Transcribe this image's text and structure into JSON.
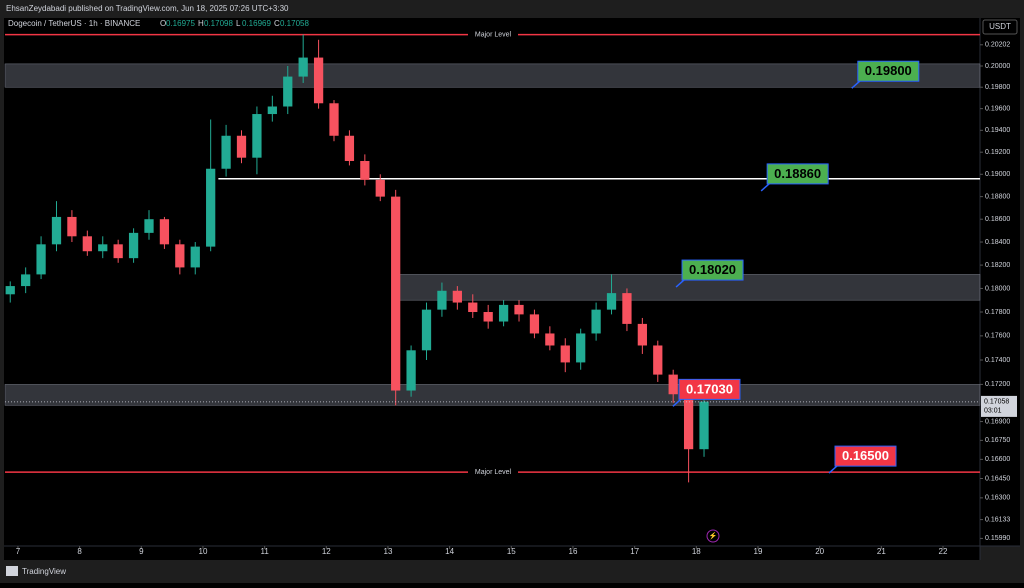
{
  "header": {
    "publisher": "EhsanZeydabadi published on TradingView.com, Jun 18, 2025 07:26 UTC+3:30",
    "symbol": "Dogecoin / TetherUS · 1h · BINANCE",
    "ohlc": [
      {
        "key": "O",
        "value": "0.16975"
      },
      {
        "key": "H",
        "value": "0.17098"
      },
      {
        "key": "L",
        "value": "0.16969"
      },
      {
        "key": "C",
        "value": "0.17058"
      }
    ],
    "currency": "USDT"
  },
  "footer": {
    "brand": "TradingView"
  },
  "chart_data": {
    "type": "candlestick",
    "log_scale": true,
    "up_color": "#22ab94",
    "down_color": "#f7525f",
    "x": [
      6.875,
      7.125,
      7.375,
      7.625,
      7.875,
      8.125,
      8.375,
      8.625,
      8.875,
      9.125,
      9.375,
      9.625,
      9.875,
      10.125,
      10.375,
      10.625,
      10.875,
      11.125,
      11.375,
      11.625,
      11.875,
      12.125,
      12.375,
      12.625,
      12.875,
      13.125,
      13.375,
      13.625,
      13.875,
      14.125,
      14.375,
      14.625,
      14.875,
      15.125,
      15.375,
      15.625,
      15.875,
      16.125,
      16.375,
      16.625,
      16.875,
      17.125,
      17.375,
      17.625,
      17.875,
      18.125
    ],
    "open": [
      0.1795,
      0.1802,
      0.1812,
      0.1838,
      0.1862,
      0.1845,
      0.1832,
      0.1838,
      0.1826,
      0.1848,
      0.186,
      0.1838,
      0.1818,
      0.1836,
      0.1905,
      0.1935,
      0.1915,
      0.1955,
      0.1962,
      0.199,
      0.2008,
      0.1965,
      0.1935,
      0.1912,
      0.1895,
      0.188,
      0.1715,
      0.1748,
      0.1782,
      0.1798,
      0.1788,
      0.178,
      0.1772,
      0.1786,
      0.1778,
      0.1762,
      0.1752,
      0.1738,
      0.1762,
      0.1782,
      0.1796,
      0.177,
      0.1752,
      0.1728,
      0.1712,
      0.1668
    ],
    "high": [
      0.1806,
      0.1818,
      0.1845,
      0.1876,
      0.1868,
      0.185,
      0.1845,
      0.1842,
      0.1852,
      0.1868,
      0.1862,
      0.1842,
      0.184,
      0.195,
      0.1945,
      0.194,
      0.1962,
      0.1972,
      0.2,
      0.203,
      0.2025,
      0.1968,
      0.194,
      0.1918,
      0.19,
      0.1886,
      0.1752,
      0.1788,
      0.1805,
      0.1802,
      0.1795,
      0.1786,
      0.179,
      0.179,
      0.1782,
      0.1768,
      0.1758,
      0.1766,
      0.1788,
      0.1812,
      0.18,
      0.1775,
      0.1756,
      0.1732,
      0.1716,
      0.1718
    ],
    "low": [
      0.1788,
      0.1796,
      0.1808,
      0.1832,
      0.184,
      0.1828,
      0.1826,
      0.1822,
      0.1822,
      0.1842,
      0.1834,
      0.1812,
      0.1812,
      0.1832,
      0.1898,
      0.191,
      0.19,
      0.1948,
      0.1955,
      0.1984,
      0.196,
      0.193,
      0.1908,
      0.189,
      0.1876,
      0.1703,
      0.171,
      0.174,
      0.1776,
      0.1782,
      0.1775,
      0.1766,
      0.1768,
      0.1772,
      0.1758,
      0.1748,
      0.173,
      0.1732,
      0.1756,
      0.1778,
      0.1764,
      0.1745,
      0.1722,
      0.1705,
      0.1642,
      0.1662
    ],
    "close": [
      0.1802,
      0.1812,
      0.1838,
      0.1862,
      0.1845,
      0.1832,
      0.1838,
      0.1826,
      0.1848,
      0.186,
      0.1838,
      0.1818,
      0.1836,
      0.1905,
      0.1935,
      0.1915,
      0.1955,
      0.1962,
      0.199,
      0.2008,
      0.1965,
      0.1935,
      0.1912,
      0.1895,
      0.188,
      0.1715,
      0.1748,
      0.1782,
      0.1798,
      0.1788,
      0.178,
      0.1772,
      0.1786,
      0.1778,
      0.1762,
      0.1752,
      0.1738,
      0.1762,
      0.1782,
      0.1796,
      0.177,
      0.1752,
      0.1728,
      0.1712,
      0.1668,
      0.1706
    ],
    "xlim": [
      6.79,
      22.6
    ],
    "xticks": [
      7,
      8,
      9,
      10,
      11,
      12,
      13,
      14,
      15,
      16,
      17,
      18,
      19,
      20,
      21,
      22
    ],
    "ylim": [
      0.1594,
      0.2046
    ],
    "yticks": [
      {
        "value": 0.20202,
        "label": "0.20202"
      },
      {
        "value": 0.2,
        "label": "0.20000"
      },
      {
        "value": 0.198,
        "label": "0.19800"
      },
      {
        "value": 0.196,
        "label": "0.19600"
      },
      {
        "value": 0.194,
        "label": "0.19400"
      },
      {
        "value": 0.192,
        "label": "0.19200"
      },
      {
        "value": 0.19,
        "label": "0.19000"
      },
      {
        "value": 0.188,
        "label": "0.18800"
      },
      {
        "value": 0.186,
        "label": "0.18600"
      },
      {
        "value": 0.184,
        "label": "0.18400"
      },
      {
        "value": 0.182,
        "label": "0.18200"
      },
      {
        "value": 0.18,
        "label": "0.18000"
      },
      {
        "value": 0.178,
        "label": "0.17800"
      },
      {
        "value": 0.176,
        "label": "0.17600"
      },
      {
        "value": 0.174,
        "label": "0.17400"
      },
      {
        "value": 0.172,
        "label": "0.17200"
      },
      {
        "value": 0.169,
        "label": "0.16900"
      },
      {
        "value": 0.1675,
        "label": "0.16750"
      },
      {
        "value": 0.166,
        "label": "0.16600"
      },
      {
        "value": 0.1645,
        "label": "0.16450"
      },
      {
        "value": 0.163,
        "label": "0.16300"
      },
      {
        "value": 0.16133,
        "label": "0.16133"
      },
      {
        "value": 0.1599,
        "label": "0.15990"
      }
    ],
    "last_price": {
      "value": 0.17058,
      "label": "0.17058",
      "countdown": "03:01"
    },
    "levels": [
      {
        "value": 0.203,
        "label": "Major Level",
        "color": "#f23645"
      },
      {
        "value": 0.165,
        "label": "Major Level",
        "color": "#f23645"
      },
      {
        "value": 0.1896,
        "start": 10.25,
        "color": "#ffffff"
      }
    ],
    "zones": [
      {
        "low": 0.198,
        "high": 0.2002
      },
      {
        "low": 0.179,
        "high": 0.1812,
        "start": 13.1
      },
      {
        "low": 0.1703,
        "high": 0.172
      }
    ],
    "annotations": [
      {
        "value": 0.198,
        "label": "0.19800",
        "x": 20.57,
        "color": "#4caf50"
      },
      {
        "value": 0.1886,
        "label": "0.18860",
        "x": 19.1,
        "color": "#4caf50"
      },
      {
        "value": 0.1802,
        "label": "0.18020",
        "x": 17.72,
        "color": "#4caf50"
      },
      {
        "value": 0.1703,
        "label": "0.17030",
        "x": 17.67,
        "color": "#f23645"
      },
      {
        "value": 0.165,
        "label": "0.16500",
        "x": 20.2,
        "color": "#f23645"
      }
    ]
  }
}
